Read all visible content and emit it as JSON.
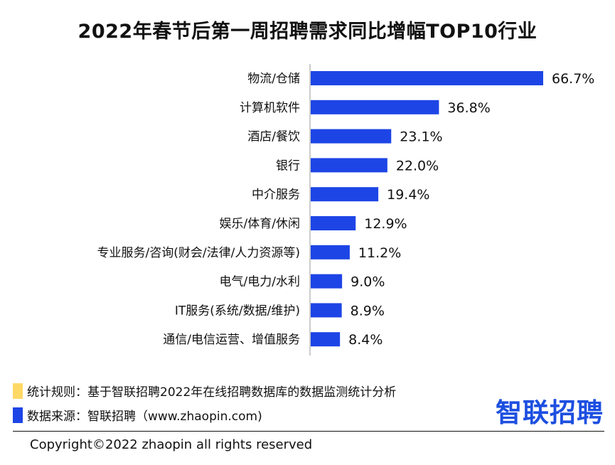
{
  "chart_data": {
    "type": "bar",
    "orientation": "horizontal",
    "title": "2022年春节后第一周招聘需求同比增幅TOP10行业",
    "categories": [
      "物流/仓储",
      "计算机软件",
      "酒店/餐饮",
      "银行",
      "中介服务",
      "娱乐/体育/休闲",
      "专业服务/咨询(财会/法律/人力资源等)",
      "电气/电力/水利",
      "IT服务(系统/数据/维护)",
      "通信/电信运营、增值服务"
    ],
    "values": [
      66.7,
      36.8,
      23.1,
      22.0,
      19.4,
      12.9,
      11.2,
      9.0,
      8.9,
      8.4
    ],
    "value_labels": [
      "66.7%",
      "36.8%",
      "23.1%",
      "22.0%",
      "19.4%",
      "12.9%",
      "11.2%",
      "9.0%",
      "8.9%",
      "8.4%"
    ],
    "xlim": [
      0,
      66.7
    ],
    "grid": false,
    "bar_color": "#1d45e6"
  },
  "notes": {
    "rule_text": "统计规则：基于智联招聘2022年在线招聘数据库的数据监测统计分析",
    "rule_color": "#ffd966",
    "source_text": "数据来源：智联招聘（www.zhaopin.com)",
    "source_color": "#1d45e6"
  },
  "logo": "智联招聘",
  "copyright": "Copyright©2022 zhaopin all rights reserved"
}
